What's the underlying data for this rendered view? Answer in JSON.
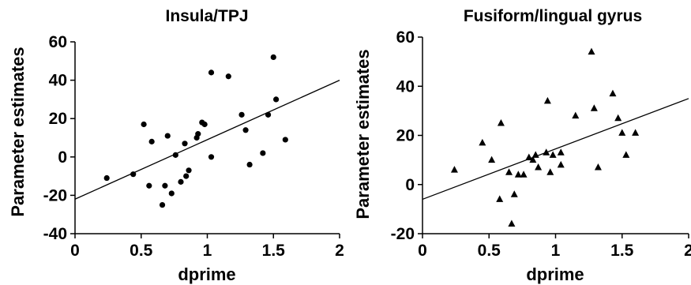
{
  "chart_data": [
    {
      "type": "scatter",
      "title": "Insula/TPJ",
      "xlabel": "dprime",
      "ylabel": "Parameter estimates",
      "xlim": [
        0,
        2
      ],
      "ylim": [
        -40,
        60
      ],
      "xticks": [
        "0",
        "0.5",
        "1",
        "1.5",
        "2"
      ],
      "yticks": [
        "60",
        "40",
        "20",
        "0",
        "-20",
        "-40"
      ],
      "marker": "circle",
      "grid": false,
      "points": [
        {
          "x": 0.24,
          "y": -11
        },
        {
          "x": 0.44,
          "y": -9
        },
        {
          "x": 0.52,
          "y": 17
        },
        {
          "x": 0.56,
          "y": -15
        },
        {
          "x": 0.58,
          "y": 8
        },
        {
          "x": 0.66,
          "y": -25
        },
        {
          "x": 0.68,
          "y": -15
        },
        {
          "x": 0.7,
          "y": 11
        },
        {
          "x": 0.73,
          "y": -19
        },
        {
          "x": 0.76,
          "y": 1
        },
        {
          "x": 0.8,
          "y": -13
        },
        {
          "x": 0.83,
          "y": 7
        },
        {
          "x": 0.84,
          "y": -10
        },
        {
          "x": 0.86,
          "y": -7
        },
        {
          "x": 0.92,
          "y": 10
        },
        {
          "x": 0.93,
          "y": 12
        },
        {
          "x": 0.96,
          "y": 18
        },
        {
          "x": 0.98,
          "y": 17
        },
        {
          "x": 1.03,
          "y": 0
        },
        {
          "x": 1.03,
          "y": 44
        },
        {
          "x": 1.16,
          "y": 42
        },
        {
          "x": 1.26,
          "y": 22
        },
        {
          "x": 1.29,
          "y": 14
        },
        {
          "x": 1.32,
          "y": -4
        },
        {
          "x": 1.42,
          "y": 2
        },
        {
          "x": 1.46,
          "y": 22
        },
        {
          "x": 1.5,
          "y": 52
        },
        {
          "x": 1.52,
          "y": 30
        },
        {
          "x": 1.59,
          "y": 9
        }
      ],
      "fit_line": {
        "x": [
          0,
          2
        ],
        "y": [
          -22,
          40
        ]
      }
    },
    {
      "type": "scatter",
      "title": "Fusiform/lingual gyrus",
      "xlabel": "dprime",
      "ylabel": "Parameter estimates",
      "xlim": [
        0,
        2
      ],
      "ylim": [
        -20,
        60
      ],
      "xticks": [
        "0",
        "0.5",
        "1",
        "1.5",
        "2"
      ],
      "yticks": [
        "60",
        "40",
        "20",
        "0",
        "-20"
      ],
      "marker": "triangle",
      "grid": false,
      "points": [
        {
          "x": 0.24,
          "y": 6
        },
        {
          "x": 0.45,
          "y": 17
        },
        {
          "x": 0.52,
          "y": 10
        },
        {
          "x": 0.58,
          "y": -6
        },
        {
          "x": 0.59,
          "y": 25
        },
        {
          "x": 0.65,
          "y": 5
        },
        {
          "x": 0.67,
          "y": -16
        },
        {
          "x": 0.69,
          "y": -4
        },
        {
          "x": 0.72,
          "y": 4
        },
        {
          "x": 0.76,
          "y": 4
        },
        {
          "x": 0.8,
          "y": 11
        },
        {
          "x": 0.83,
          "y": 10
        },
        {
          "x": 0.85,
          "y": 12
        },
        {
          "x": 0.87,
          "y": 7
        },
        {
          "x": 0.93,
          "y": 13
        },
        {
          "x": 0.94,
          "y": 34
        },
        {
          "x": 0.96,
          "y": 5
        },
        {
          "x": 0.98,
          "y": 12
        },
        {
          "x": 1.04,
          "y": 8
        },
        {
          "x": 1.04,
          "y": 13
        },
        {
          "x": 1.15,
          "y": 28
        },
        {
          "x": 1.27,
          "y": 54
        },
        {
          "x": 1.29,
          "y": 31
        },
        {
          "x": 1.32,
          "y": 7
        },
        {
          "x": 1.43,
          "y": 37
        },
        {
          "x": 1.47,
          "y": 27
        },
        {
          "x": 1.5,
          "y": 21
        },
        {
          "x": 1.53,
          "y": 12
        },
        {
          "x": 1.6,
          "y": 21
        }
      ],
      "fit_line": {
        "x": [
          0,
          2
        ],
        "y": [
          -6,
          35
        ]
      }
    }
  ]
}
